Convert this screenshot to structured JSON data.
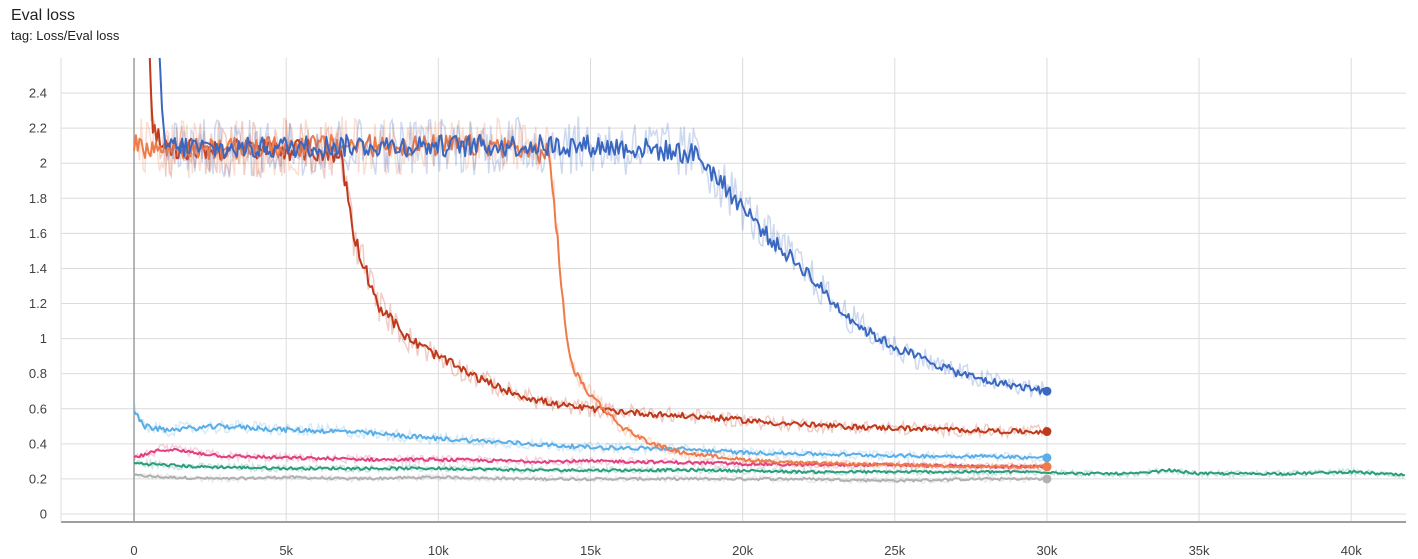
{
  "card": {
    "title": "Eval loss",
    "tag": "tag: Loss/Eval loss"
  },
  "chart_data": {
    "type": "line",
    "title": "Eval loss",
    "xlabel": "",
    "ylabel": "",
    "xlim": [
      -2400,
      41800
    ],
    "ylim": [
      -0.04,
      2.6
    ],
    "grid": true,
    "legend": "none",
    "x_ticks": [
      0,
      5000,
      10000,
      15000,
      20000,
      25000,
      30000,
      35000,
      40000
    ],
    "x_tick_labels": [
      "0",
      "5k",
      "10k",
      "15k",
      "20k",
      "25k",
      "30k",
      "35k",
      "40k"
    ],
    "y_ticks": [
      0,
      0.2,
      0.4,
      0.6,
      0.8,
      1,
      1.2,
      1.4,
      1.6,
      1.8,
      2,
      2.2,
      2.4
    ],
    "y_tick_labels": [
      "0",
      "0.2",
      "0.4",
      "0.6",
      "0.8",
      "1",
      "1.2",
      "1.4",
      "1.6",
      "1.8",
      "2",
      "2.2",
      "2.4"
    ],
    "series": [
      {
        "color": "#b0b0b0",
        "x": [
          0,
          1000,
          3000,
          5000,
          7000,
          10000,
          13000,
          16000,
          19000,
          22000,
          25000,
          28000,
          30000
        ],
        "values": [
          0.22,
          0.21,
          0.2,
          0.21,
          0.2,
          0.21,
          0.2,
          0.2,
          0.2,
          0.2,
          0.19,
          0.2,
          0.2
        ]
      },
      {
        "color": "#2a9d7c",
        "x": [
          0,
          2000,
          5000,
          8000,
          10000,
          13000,
          16000,
          19000,
          22000,
          25000,
          28000,
          30000,
          31000,
          33000,
          34000,
          35000,
          38000,
          40000,
          41800
        ],
        "values": [
          0.29,
          0.27,
          0.26,
          0.26,
          0.26,
          0.25,
          0.25,
          0.25,
          0.24,
          0.24,
          0.24,
          0.24,
          0.23,
          0.23,
          0.25,
          0.23,
          0.23,
          0.24,
          0.22
        ]
      },
      {
        "color": "#e0407d",
        "x": [
          0,
          1000,
          3000,
          5000,
          8000,
          10000,
          13000,
          16000,
          19000,
          22000,
          25000,
          28000,
          30000
        ],
        "values": [
          0.32,
          0.37,
          0.33,
          0.32,
          0.31,
          0.31,
          0.3,
          0.3,
          0.29,
          0.28,
          0.28,
          0.27,
          0.27
        ]
      },
      {
        "color": "#5aaee8",
        "x": [
          0,
          300,
          1000,
          3000,
          5000,
          7000,
          10000,
          13000,
          15000,
          18000,
          20000,
          23000,
          26000,
          28000,
          30000
        ],
        "values": [
          0.6,
          0.5,
          0.48,
          0.5,
          0.48,
          0.47,
          0.43,
          0.4,
          0.38,
          0.37,
          0.35,
          0.34,
          0.33,
          0.33,
          0.32
        ]
      },
      {
        "color": "#c0391b",
        "x": [
          500,
          600,
          1000,
          3000,
          5000,
          6000,
          6800,
          7000,
          7200,
          7500,
          8000,
          8500,
          9000,
          10000,
          11000,
          12000,
          13000,
          14000,
          15000,
          17000,
          19000,
          21000,
          23000,
          25000,
          27000,
          29000,
          30000
        ],
        "values": [
          2.7,
          2.2,
          2.08,
          2.08,
          2.08,
          2.07,
          2.04,
          1.85,
          1.6,
          1.45,
          1.2,
          1.1,
          1.0,
          0.9,
          0.8,
          0.72,
          0.66,
          0.62,
          0.6,
          0.57,
          0.55,
          0.52,
          0.5,
          0.49,
          0.48,
          0.47,
          0.47
        ]
      },
      {
        "color": "#ee7b4a",
        "x": [
          0,
          1000,
          3000,
          6000,
          9000,
          12000,
          13600,
          13800,
          14000,
          14200,
          14500,
          15000,
          16000,
          17000,
          18000,
          20000,
          22000,
          25000,
          28000,
          30000
        ],
        "values": [
          2.1,
          2.08,
          2.08,
          2.1,
          2.1,
          2.1,
          2.05,
          1.8,
          1.4,
          1.0,
          0.8,
          0.68,
          0.5,
          0.4,
          0.35,
          0.31,
          0.29,
          0.28,
          0.27,
          0.27
        ]
      },
      {
        "color": "#3a68c0",
        "x": [
          800,
          1000,
          3000,
          6000,
          9000,
          12000,
          15000,
          17000,
          18500,
          19000,
          19500,
          20000,
          21000,
          22000,
          23000,
          24000,
          25000,
          26000,
          27000,
          28000,
          29000,
          30000
        ],
        "values": [
          2.7,
          2.1,
          2.08,
          2.1,
          2.1,
          2.1,
          2.1,
          2.08,
          2.05,
          1.95,
          1.85,
          1.75,
          1.55,
          1.4,
          1.2,
          1.05,
          0.95,
          0.88,
          0.81,
          0.76,
          0.73,
          0.7
        ]
      }
    ]
  }
}
